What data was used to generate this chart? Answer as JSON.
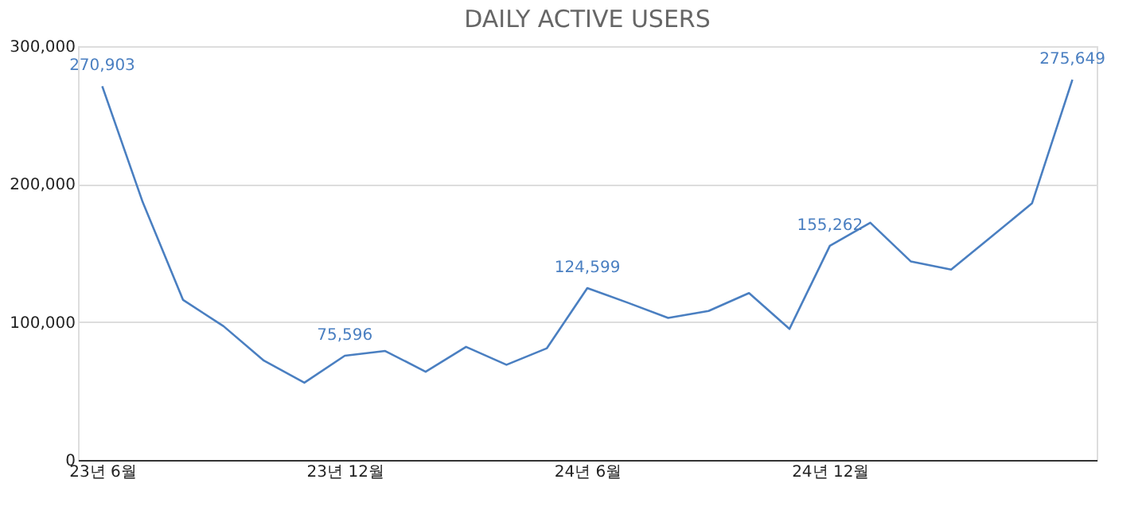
{
  "chart_data": {
    "type": "line",
    "title": "DAILY ACTIVE USERS",
    "categories": [
      "23년 6월",
      null,
      null,
      null,
      null,
      null,
      "23년 12월",
      null,
      null,
      null,
      null,
      null,
      "24년 6월",
      null,
      null,
      null,
      null,
      null,
      "24년 12월",
      null,
      null,
      null,
      null,
      null,
      null
    ],
    "series": [
      {
        "color": "#4a7fc1",
        "values": [
          270903,
          187000,
          116000,
          97000,
          72000,
          56000,
          75596,
          79000,
          64000,
          82000,
          69000,
          81000,
          124599,
          114000,
          103000,
          108000,
          121000,
          95000,
          155262,
          172000,
          144000,
          138000,
          162000,
          186000,
          275649
        ],
        "value_labels": [
          "270,903",
          null,
          null,
          null,
          null,
          null,
          "75,596",
          null,
          null,
          null,
          null,
          null,
          "124,599",
          null,
          null,
          null,
          null,
          null,
          "155,262",
          null,
          null,
          null,
          null,
          null,
          "275,649"
        ]
      }
    ],
    "ylim": [
      0,
      300000
    ],
    "yticks": [
      {
        "value": 0,
        "label": "0"
      },
      {
        "value": 100000,
        "label": "100,000"
      },
      {
        "value": 200000,
        "label": "200,000"
      },
      {
        "value": 300000,
        "label": "300,000"
      }
    ],
    "grid": "y",
    "marker": "none",
    "line_style": "solid"
  }
}
